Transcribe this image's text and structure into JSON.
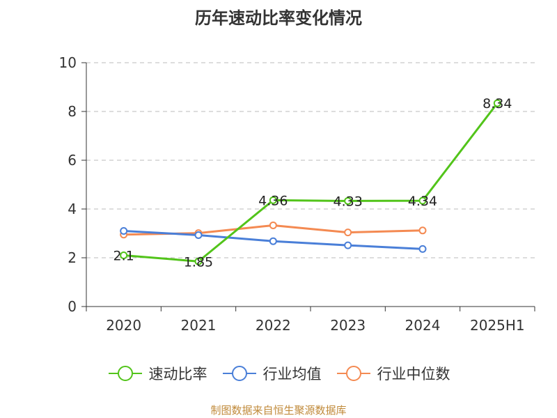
{
  "chart_data": {
    "type": "line",
    "title": "历年速动比率变化情况",
    "categories": [
      "2020",
      "2021",
      "2022",
      "2023",
      "2024",
      "2025H1"
    ],
    "ylim": [
      0,
      10
    ],
    "yticks": [
      0,
      2,
      4,
      6,
      8,
      10
    ],
    "grid": true,
    "legend_position": "bottom",
    "series": [
      {
        "name": "速动比率",
        "color": "#52c41a",
        "values": [
          2.1,
          1.85,
          4.36,
          4.33,
          4.34,
          8.34
        ],
        "labels": [
          "2.1",
          "1.85",
          "4.36",
          "4.33",
          "4.34",
          "8.34"
        ],
        "show_labels": true
      },
      {
        "name": "行业均值",
        "color": "#4a7fd8",
        "values": [
          3.1,
          2.93,
          2.68,
          2.51,
          2.36,
          null
        ],
        "show_labels": false
      },
      {
        "name": "行业中位数",
        "color": "#f48a52",
        "values": [
          2.95,
          3.01,
          3.33,
          3.04,
          3.12,
          null
        ],
        "show_labels": false
      }
    ]
  },
  "source": "制图数据来自恒生聚源数据库"
}
